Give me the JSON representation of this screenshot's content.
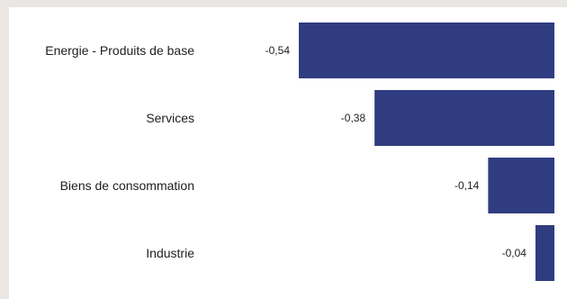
{
  "chart_data": {
    "type": "bar",
    "orientation": "horizontal",
    "categories": [
      "Energie - Produits de base",
      "Services",
      "Biens de consommation",
      "Industrie"
    ],
    "values": [
      -0.54,
      -0.38,
      -0.14,
      -0.04
    ],
    "value_labels": [
      "-0,54",
      "-0,38",
      "-0,14",
      "-0,04"
    ],
    "xlim": [
      -0.54,
      0
    ],
    "bar_color": "#2f3c80",
    "grid": false,
    "legend": "none"
  }
}
